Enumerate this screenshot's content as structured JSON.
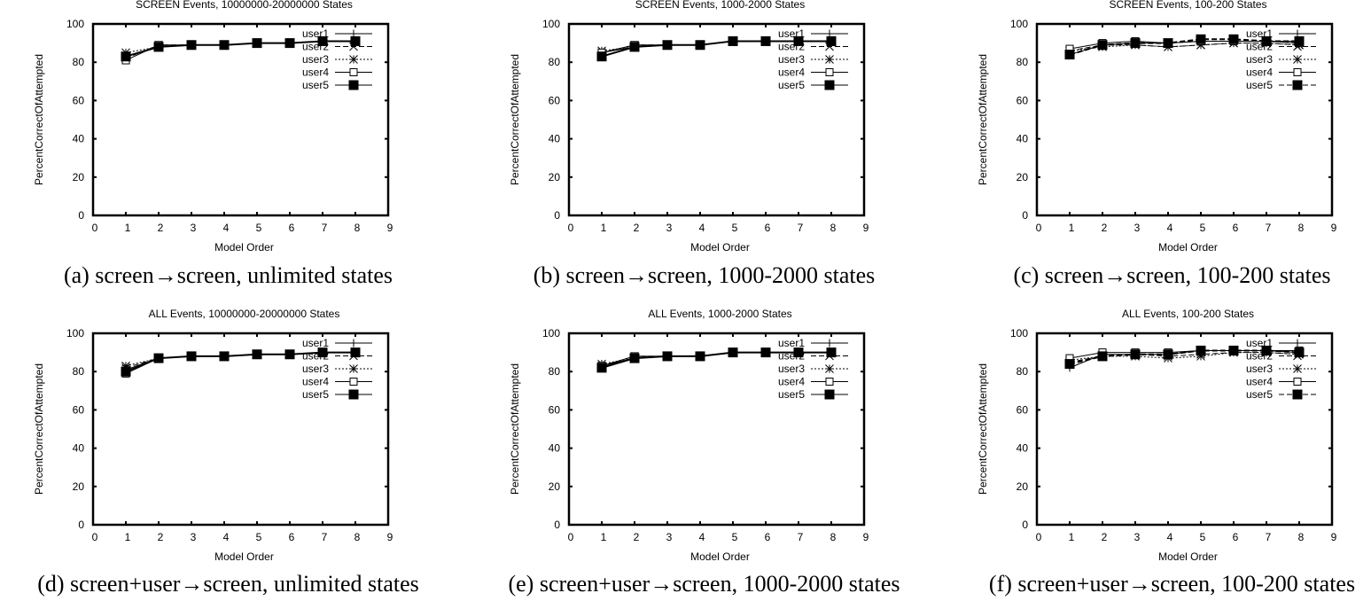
{
  "figure": {
    "panels": [
      {
        "id": "a",
        "caption": "(a) screen→screen, unlimited states"
      },
      {
        "id": "b",
        "caption": "(b) screen→screen, 1000-2000 states"
      },
      {
        "id": "c",
        "caption": "(c) screen→screen, 100-200 states"
      },
      {
        "id": "d",
        "caption": "(d) screen+user→screen, unlimited states"
      },
      {
        "id": "e",
        "caption": "(e) screen+user→screen, 1000-2000 states"
      },
      {
        "id": "f",
        "caption": "(f) screen+user→screen, 100-200 states"
      }
    ]
  },
  "chart_data": [
    {
      "type": "line",
      "title": "SCREEN Events, 10000000-20000000 States",
      "xlabel": "Model Order",
      "ylabel": "PercentCorrectOfAttempted",
      "xlim": [
        0,
        9
      ],
      "ylim": [
        0,
        100
      ],
      "xticks": [
        0,
        1,
        2,
        3,
        4,
        5,
        6,
        7,
        8,
        9
      ],
      "yticks": [
        0,
        20,
        40,
        60,
        80,
        100
      ],
      "grid": false,
      "legend_position": "top-right",
      "x": [
        1,
        2,
        3,
        4,
        5,
        6,
        7,
        8
      ],
      "series": [
        {
          "name": "user1",
          "marker": "plus",
          "dash": "solid",
          "values": [
            83,
            88,
            89,
            89,
            90,
            90,
            91,
            91
          ]
        },
        {
          "name": "user2",
          "marker": "x",
          "dash": "dashed",
          "values": [
            82,
            89,
            89,
            89,
            90,
            90,
            91,
            91
          ]
        },
        {
          "name": "user3",
          "marker": "star",
          "dash": "dotted",
          "values": [
            85,
            88,
            89,
            89,
            90,
            90,
            91,
            91
          ]
        },
        {
          "name": "user4",
          "marker": "square-open",
          "dash": "solid",
          "values": [
            81,
            89,
            89,
            89,
            90,
            90,
            91,
            91
          ]
        },
        {
          "name": "user5",
          "marker": "square-filled",
          "dash": "solid",
          "values": [
            83,
            88,
            89,
            89,
            90,
            90,
            91,
            91
          ]
        }
      ]
    },
    {
      "type": "line",
      "title": "SCREEN Events, 1000-2000 States",
      "xlabel": "Model Order",
      "ylabel": "PercentCorrectOfAttempted",
      "xlim": [
        0,
        9
      ],
      "ylim": [
        0,
        100
      ],
      "xticks": [
        0,
        1,
        2,
        3,
        4,
        5,
        6,
        7,
        8,
        9
      ],
      "yticks": [
        0,
        20,
        40,
        60,
        80,
        100
      ],
      "grid": false,
      "legend_position": "top-right",
      "x": [
        1,
        2,
        3,
        4,
        5,
        6,
        7,
        8
      ],
      "series": [
        {
          "name": "user1",
          "marker": "plus",
          "dash": "solid",
          "values": [
            85,
            88,
            89,
            89,
            91,
            91,
            91,
            91
          ]
        },
        {
          "name": "user2",
          "marker": "x",
          "dash": "dashed",
          "values": [
            85,
            89,
            89,
            89,
            91,
            91,
            91,
            91
          ]
        },
        {
          "name": "user3",
          "marker": "star",
          "dash": "dotted",
          "values": [
            86,
            88,
            89,
            89,
            91,
            91,
            91,
            91
          ]
        },
        {
          "name": "user4",
          "marker": "square-open",
          "dash": "solid",
          "values": [
            85,
            89,
            89,
            89,
            91,
            91,
            91,
            91
          ]
        },
        {
          "name": "user5",
          "marker": "square-filled",
          "dash": "solid",
          "values": [
            83,
            88,
            89,
            89,
            91,
            91,
            91,
            91
          ]
        }
      ]
    },
    {
      "type": "line",
      "title": "SCREEN Events, 100-200 States",
      "xlabel": "Model Order",
      "ylabel": "PercentCorrectOfAttempted",
      "xlim": [
        0,
        9
      ],
      "ylim": [
        0,
        100
      ],
      "xticks": [
        0,
        1,
        2,
        3,
        4,
        5,
        6,
        7,
        8,
        9
      ],
      "yticks": [
        0,
        20,
        40,
        60,
        80,
        100
      ],
      "grid": false,
      "legend_position": "top-right",
      "x": [
        1,
        2,
        3,
        4,
        5,
        6,
        7,
        8
      ],
      "series": [
        {
          "name": "user1",
          "marker": "plus",
          "dash": "solid",
          "values": [
            84,
            89,
            90,
            90,
            91,
            91,
            91,
            91
          ]
        },
        {
          "name": "user2",
          "marker": "x",
          "dash": "dashed",
          "values": [
            86,
            89,
            89,
            88,
            89,
            90,
            90,
            89
          ]
        },
        {
          "name": "user3",
          "marker": "star",
          "dash": "dotted",
          "values": [
            86,
            88,
            89,
            88,
            89,
            90,
            90,
            89
          ]
        },
        {
          "name": "user4",
          "marker": "square-open",
          "dash": "solid",
          "values": [
            87,
            90,
            91,
            90,
            91,
            91,
            91,
            90
          ]
        },
        {
          "name": "user5",
          "marker": "square-filled",
          "dash": "dashed",
          "values": [
            84,
            89,
            90,
            90,
            92,
            92,
            91,
            91
          ]
        }
      ]
    },
    {
      "type": "line",
      "title": "ALL Events, 10000000-20000000 States",
      "xlabel": "Model Order",
      "ylabel": "PercentCorrectOfAttempted",
      "xlim": [
        0,
        9
      ],
      "ylim": [
        0,
        100
      ],
      "xticks": [
        0,
        1,
        2,
        3,
        4,
        5,
        6,
        7,
        8,
        9
      ],
      "yticks": [
        0,
        20,
        40,
        60,
        80,
        100
      ],
      "grid": false,
      "legend_position": "top-right",
      "x": [
        1,
        2,
        3,
        4,
        5,
        6,
        7,
        8
      ],
      "series": [
        {
          "name": "user1",
          "marker": "plus",
          "dash": "solid",
          "values": [
            81,
            87,
            88,
            88,
            89,
            89,
            90,
            90
          ]
        },
        {
          "name": "user2",
          "marker": "x",
          "dash": "dashed",
          "values": [
            82,
            87,
            88,
            88,
            89,
            89,
            90,
            90
          ]
        },
        {
          "name": "user3",
          "marker": "star",
          "dash": "dotted",
          "values": [
            83,
            87,
            88,
            88,
            89,
            89,
            90,
            90
          ]
        },
        {
          "name": "user4",
          "marker": "square-open",
          "dash": "solid",
          "values": [
            79,
            87,
            88,
            88,
            89,
            89,
            90,
            90
          ]
        },
        {
          "name": "user5",
          "marker": "square-filled",
          "dash": "solid",
          "values": [
            80,
            87,
            88,
            88,
            89,
            89,
            90,
            90
          ]
        }
      ]
    },
    {
      "type": "line",
      "title": "ALL Events, 1000-2000 States",
      "xlabel": "Model Order",
      "ylabel": "PercentCorrectOfAttempted",
      "xlim": [
        0,
        9
      ],
      "ylim": [
        0,
        100
      ],
      "xticks": [
        0,
        1,
        2,
        3,
        4,
        5,
        6,
        7,
        8,
        9
      ],
      "yticks": [
        0,
        20,
        40,
        60,
        80,
        100
      ],
      "grid": false,
      "legend_position": "top-right",
      "x": [
        1,
        2,
        3,
        4,
        5,
        6,
        7,
        8
      ],
      "series": [
        {
          "name": "user1",
          "marker": "plus",
          "dash": "solid",
          "values": [
            83,
            87,
            88,
            88,
            90,
            90,
            90,
            90
          ]
        },
        {
          "name": "user2",
          "marker": "x",
          "dash": "dashed",
          "values": [
            83,
            88,
            88,
            88,
            90,
            90,
            90,
            90
          ]
        },
        {
          "name": "user3",
          "marker": "star",
          "dash": "dotted",
          "values": [
            84,
            87,
            88,
            88,
            90,
            90,
            90,
            90
          ]
        },
        {
          "name": "user4",
          "marker": "square-open",
          "dash": "solid",
          "values": [
            83,
            88,
            88,
            88,
            90,
            90,
            90,
            90
          ]
        },
        {
          "name": "user5",
          "marker": "square-filled",
          "dash": "solid",
          "values": [
            82,
            87,
            88,
            88,
            90,
            90,
            90,
            90
          ]
        }
      ]
    },
    {
      "type": "line",
      "title": "ALL Events, 100-200 States",
      "xlabel": "Model Order",
      "ylabel": "PercentCorrectOfAttempted",
      "xlim": [
        0,
        9
      ],
      "ylim": [
        0,
        100
      ],
      "xticks": [
        0,
        1,
        2,
        3,
        4,
        5,
        6,
        7,
        8,
        9
      ],
      "yticks": [
        0,
        20,
        40,
        60,
        80,
        100
      ],
      "grid": false,
      "legend_position": "top-right",
      "x": [
        1,
        2,
        3,
        4,
        5,
        6,
        7,
        8
      ],
      "series": [
        {
          "name": "user1",
          "marker": "plus",
          "dash": "solid",
          "values": [
            82,
            89,
            89,
            89,
            91,
            91,
            91,
            90
          ]
        },
        {
          "name": "user2",
          "marker": "x",
          "dash": "dashed",
          "values": [
            85,
            88,
            89,
            88,
            89,
            90,
            90,
            89
          ]
        },
        {
          "name": "user3",
          "marker": "star",
          "dash": "dotted",
          "values": [
            86,
            88,
            88,
            87,
            88,
            90,
            90,
            89
          ]
        },
        {
          "name": "user4",
          "marker": "square-open",
          "dash": "solid",
          "values": [
            87,
            90,
            90,
            90,
            91,
            91,
            91,
            91
          ]
        },
        {
          "name": "user5",
          "marker": "square-filled",
          "dash": "dashed",
          "values": [
            84,
            88,
            89,
            89,
            91,
            91,
            91,
            90
          ]
        }
      ]
    }
  ]
}
